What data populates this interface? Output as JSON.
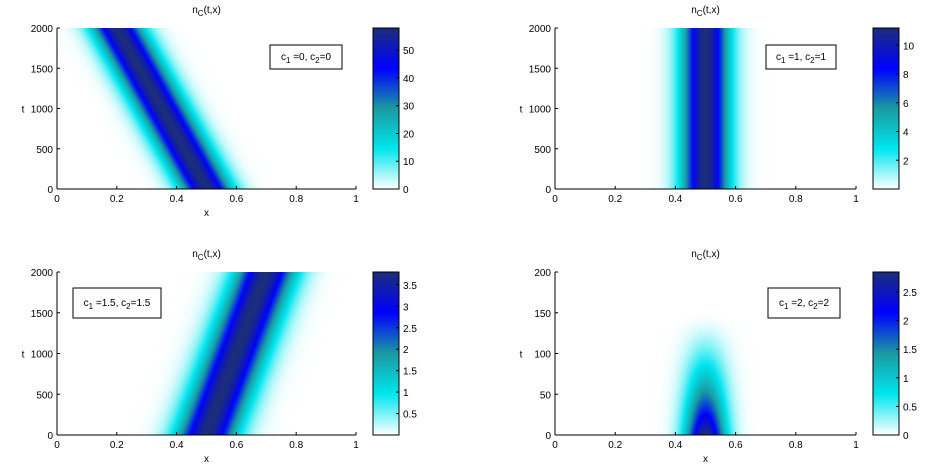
{
  "colors": {
    "colormap": [
      "#ffffff",
      "#00e6ee",
      "#1a9aa0",
      "#0000ff",
      "#1c2e7a"
    ],
    "axis": "#000000",
    "background": "#ffffff"
  },
  "chart_data": [
    {
      "type": "heatmap",
      "title_main": "n",
      "title_sub": "C",
      "title_args": "(t,x)",
      "xlabel": "x",
      "ylabel": "t",
      "xlim": [
        0,
        1
      ],
      "ylim": [
        0,
        2000
      ],
      "xticks": [
        "0",
        "0.2",
        "0.4",
        "0.6",
        "0.8",
        "1"
      ],
      "yticks": [
        "0",
        "500",
        "1000",
        "1500",
        "2000"
      ],
      "legend_box": {
        "c1": "=0,",
        "c2": "=0"
      },
      "legend_position": "top-right",
      "colorbar": {
        "min": 0,
        "max": 58,
        "ticks": [
          "0",
          "10",
          "20",
          "30",
          "40",
          "50"
        ]
      },
      "field": {
        "center_at_t0": 0.5,
        "center_at_tmax": 0.2,
        "width_at_t0": 0.06,
        "width_at_tmax": 0.06,
        "peak_value": 58,
        "appears_from_t": 0
      }
    },
    {
      "type": "heatmap",
      "title_main": "n",
      "title_sub": "C",
      "title_args": "(t,x)",
      "xlabel": "",
      "ylabel": "t",
      "xlim": [
        0,
        1
      ],
      "ylim": [
        0,
        2000
      ],
      "xticks": [
        "0",
        "0.2",
        "0.4",
        "0.6",
        "0.8",
        "1"
      ],
      "yticks": [
        "0",
        "500",
        "1000",
        "1500",
        "2000"
      ],
      "legend_box": {
        "c1": "=1,",
        "c2": "=1"
      },
      "legend_position": "top-right",
      "colorbar": {
        "min": 0,
        "max": 11.2,
        "ticks": [
          "2",
          "4",
          "6",
          "8",
          "10"
        ]
      },
      "field": {
        "center_at_t0": 0.5,
        "center_at_tmax": 0.5,
        "width_at_t0": 0.055,
        "width_at_tmax": 0.055,
        "peak_value": 11,
        "appears_from_t": 0
      }
    },
    {
      "type": "heatmap",
      "title_main": "n",
      "title_sub": "C",
      "title_args": "(t,x)",
      "xlabel": "x",
      "ylabel": "t",
      "xlim": [
        0,
        1
      ],
      "ylim": [
        0,
        2000
      ],
      "xticks": [
        "0",
        "0.2",
        "0.4",
        "0.6",
        "0.8",
        "1"
      ],
      "yticks": [
        "0",
        "500",
        "1000",
        "1500",
        "2000"
      ],
      "legend_box": {
        "c1": "=1.5,",
        "c2": "=1.5"
      },
      "legend_position": "top-left",
      "colorbar": {
        "min": 0,
        "max": 3.8,
        "ticks": [
          "0.5",
          "1",
          "1.5",
          "2",
          "2.5",
          "3",
          "3.5"
        ]
      },
      "field": {
        "center_at_t0": 0.5,
        "center_at_tmax": 0.7,
        "width_at_t0": 0.07,
        "width_at_tmax": 0.07,
        "peak_value": 3.8,
        "appears_from_t": 0
      }
    },
    {
      "type": "heatmap",
      "title_main": "n",
      "title_sub": "C",
      "title_args": "(t,x)",
      "xlabel": "x",
      "ylabel": "t",
      "xlim": [
        0,
        1
      ],
      "ylim": [
        0,
        200
      ],
      "xticks": [
        "0",
        "0.2",
        "0.4",
        "0.6",
        "0.8",
        "1"
      ],
      "yticks": [
        "0",
        "50",
        "100",
        "150",
        "200"
      ],
      "legend_box": {
        "c1": "=2,",
        "c2": "=2"
      },
      "legend_position": "top-right",
      "colorbar": {
        "min": 0,
        "max": 2.85,
        "ticks": [
          "0",
          "0.5",
          "1",
          "1.5",
          "2",
          "2.5"
        ]
      },
      "field": {
        "center_at_t0": 0.5,
        "center_at_tmax": 0.5,
        "width_at_t0": 0.06,
        "width_at_tmax": 0.06,
        "peak_value": 2.85,
        "appears_from_t": 0,
        "decay_t": 150
      }
    }
  ]
}
